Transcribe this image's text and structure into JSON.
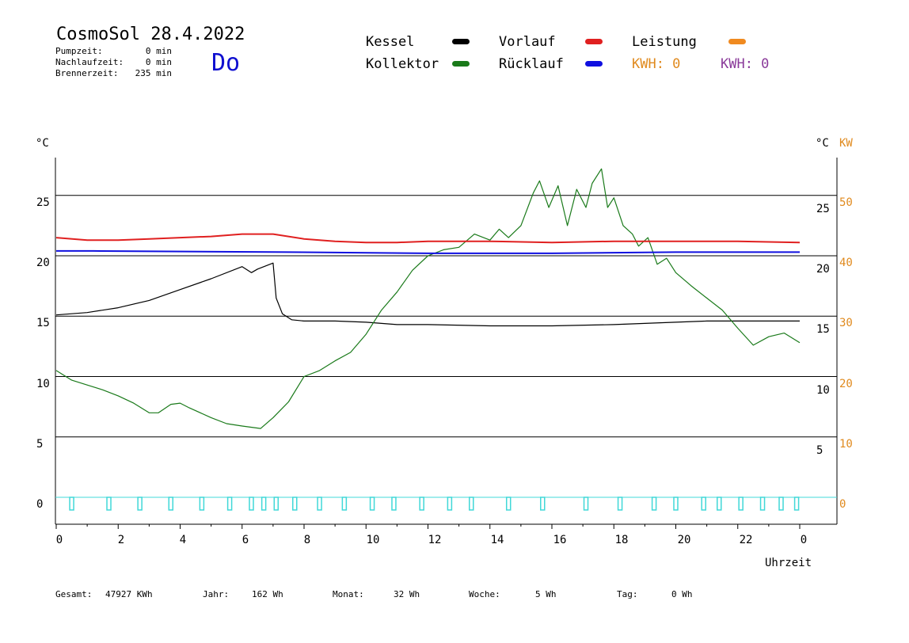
{
  "header": {
    "title": "CosmoSol 28.4.2022",
    "day": "Do",
    "stats": [
      {
        "label": "Pumpzeit:",
        "value": "0 min"
      },
      {
        "label": "Nachlaufzeit:",
        "value": "0 min"
      },
      {
        "label": "Brennerzeit:",
        "value": "235 min"
      }
    ]
  },
  "legend": {
    "kessel": {
      "label": "Kessel",
      "color": "#000000"
    },
    "kollektor": {
      "label": "Kollektor",
      "color": "#1a7a1a"
    },
    "vorlauf": {
      "label": "Vorlauf",
      "color": "#e02020"
    },
    "ruecklauf": {
      "label": "Rücklauf",
      "color": "#1010e0"
    },
    "leistung": {
      "label": "Leistung",
      "color": "#f08a20"
    },
    "kwh_orange": {
      "label": "KWH: 0",
      "color": "#e08a1e"
    },
    "kwh_purple": {
      "label": "KWH: 0",
      "color": "#8a3a9a"
    }
  },
  "axes": {
    "left_unit": "°C",
    "right_unit": "°C",
    "right_unit2": "KW",
    "xlabel": "Uhrzeit",
    "x_ticks": [
      "0",
      "2",
      "4",
      "6",
      "8",
      "10",
      "12",
      "14",
      "16",
      "18",
      "20",
      "22",
      "0"
    ],
    "left_ticks": [
      "0",
      "5",
      "10",
      "15",
      "20",
      "25"
    ],
    "right_ticks": [
      "5",
      "10",
      "15",
      "20",
      "25"
    ],
    "kw_ticks": [
      "0",
      "10",
      "20",
      "30",
      "40",
      "50"
    ]
  },
  "footer": {
    "gesamt": {
      "label": "Gesamt:",
      "value": "47927 KWh"
    },
    "jahr": {
      "label": "Jahr:",
      "value": "162 Wh"
    },
    "monat": {
      "label": "Monat:",
      "value": "32 Wh"
    },
    "woche": {
      "label": "Woche:",
      "value": "5 Wh"
    },
    "tag": {
      "label": "Tag:",
      "value": "0 Wh"
    }
  },
  "chart_data": {
    "type": "line",
    "xlabel": "Uhrzeit",
    "ylabel": "°C",
    "xlim": [
      0,
      24
    ],
    "ylim": [
      -1.5,
      28.5
    ],
    "grid": true,
    "series": [
      {
        "name": "Kessel",
        "color": "#000000",
        "x": [
          0,
          1,
          2,
          3,
          4,
          5,
          6,
          6.3,
          6.5,
          7,
          7.1,
          7.3,
          7.6,
          8,
          9,
          10,
          11,
          12,
          14,
          16,
          18,
          20,
          21,
          22,
          23,
          24
        ],
        "y": [
          15.1,
          15.3,
          15.7,
          16.3,
          17.2,
          18.1,
          19.1,
          18.6,
          18.9,
          19.4,
          16.5,
          15.2,
          14.7,
          14.6,
          14.6,
          14.5,
          14.3,
          14.3,
          14.2,
          14.2,
          14.3,
          14.5,
          14.6,
          14.6,
          14.6,
          14.6
        ]
      },
      {
        "name": "Kollektor",
        "color": "#1a7a1a",
        "x": [
          0,
          0.5,
          1,
          1.5,
          2,
          2.5,
          3,
          3.3,
          3.7,
          4,
          4.3,
          5,
          5.5,
          6,
          6.6,
          7,
          7.5,
          8,
          8.5,
          9,
          9.5,
          10,
          10.5,
          11,
          11.5,
          12,
          12.5,
          13,
          13.5,
          14,
          14.3,
          14.6,
          15,
          15.4,
          15.6,
          15.9,
          16.2,
          16.5,
          16.8,
          17.1,
          17.3,
          17.6,
          17.8,
          18,
          18.3,
          18.6,
          18.8,
          19.1,
          19.4,
          19.7,
          20,
          20.5,
          21,
          21.5,
          22,
          22.5,
          23,
          23.5,
          24
        ],
        "y": [
          10.5,
          9.7,
          9.3,
          8.9,
          8.4,
          7.8,
          7.0,
          7.0,
          7.7,
          7.8,
          7.4,
          6.6,
          6.1,
          5.9,
          5.7,
          6.6,
          7.9,
          10.0,
          10.5,
          11.3,
          12.0,
          13.5,
          15.5,
          17.0,
          18.8,
          20.0,
          20.5,
          20.7,
          21.8,
          21.3,
          22.2,
          21.5,
          22.5,
          25.2,
          26.2,
          24.0,
          25.8,
          22.5,
          25.5,
          24.0,
          26.0,
          27.2,
          24.0,
          24.8,
          22.5,
          21.8,
          20.8,
          21.5,
          19.3,
          19.8,
          18.6,
          17.5,
          16.5,
          15.5,
          14.0,
          12.6,
          13.3,
          13.6,
          12.8
        ]
      },
      {
        "name": "Vorlauf",
        "color": "#e02020",
        "x": [
          0,
          1,
          2,
          3,
          4,
          5,
          6,
          7,
          8,
          9,
          10,
          11,
          12,
          14,
          16,
          18,
          20,
          22,
          24
        ],
        "y": [
          21.5,
          21.3,
          21.3,
          21.4,
          21.5,
          21.6,
          21.8,
          21.8,
          21.4,
          21.2,
          21.1,
          21.1,
          21.2,
          21.2,
          21.1,
          21.2,
          21.2,
          21.2,
          21.1
        ]
      },
      {
        "name": "Rücklauf",
        "color": "#1010e0",
        "x": [
          0,
          1.2,
          7.5,
          12,
          16,
          20,
          24
        ],
        "y": [
          20.4,
          20.4,
          20.3,
          20.2,
          20.2,
          20.3,
          20.3
        ]
      }
    ],
    "pump_markers": [
      0.5,
      1.7,
      2.7,
      3.7,
      4.7,
      5.6,
      6.3,
      6.7,
      7.1,
      7.7,
      8.5,
      9.3,
      10.2,
      10.9,
      11.8,
      12.7,
      13.4,
      14.6,
      15.7,
      17.1,
      18.2,
      19.3,
      20.0,
      20.9,
      21.4,
      22.1,
      22.8,
      23.4,
      23.9
    ]
  }
}
